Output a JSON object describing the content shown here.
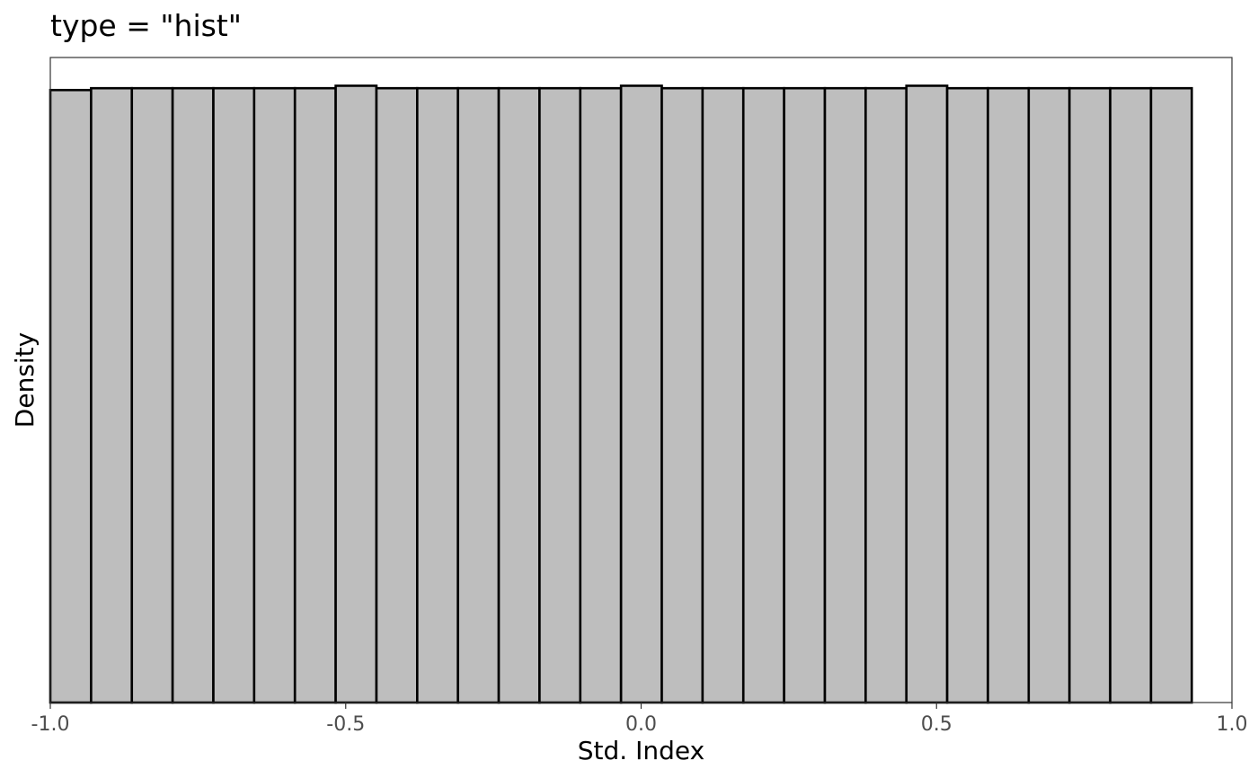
{
  "chart_data": {
    "type": "bar",
    "title": "type = \"hist\"",
    "xlabel": "Std. Index",
    "ylabel": "Density",
    "xlim": [
      -1.0,
      1.0
    ],
    "ylim": [
      0,
      1.05
    ],
    "x_ticks": [
      -1.0,
      -0.5,
      0.0,
      0.5,
      1.0
    ],
    "x_tick_labels": [
      "-1.0",
      "-0.5",
      "0.0",
      "0.5",
      "1.0"
    ],
    "y_ticks_shown": false,
    "grid": false,
    "bar_fill": "#bebebe",
    "bar_outline": "#000000",
    "bins": {
      "start": -1.0,
      "width": 0.069,
      "edges_note": "28 bins"
    },
    "values": [
      0.997,
      1.0,
      1.0,
      1.0,
      1.0,
      1.0,
      1.0,
      1.004,
      1.0,
      1.0,
      1.0,
      1.0,
      1.0,
      1.0,
      1.004,
      1.0,
      1.0,
      1.0,
      1.0,
      1.0,
      1.0,
      1.004,
      1.0,
      1.0,
      1.0,
      1.0,
      1.0,
      1.0
    ]
  }
}
